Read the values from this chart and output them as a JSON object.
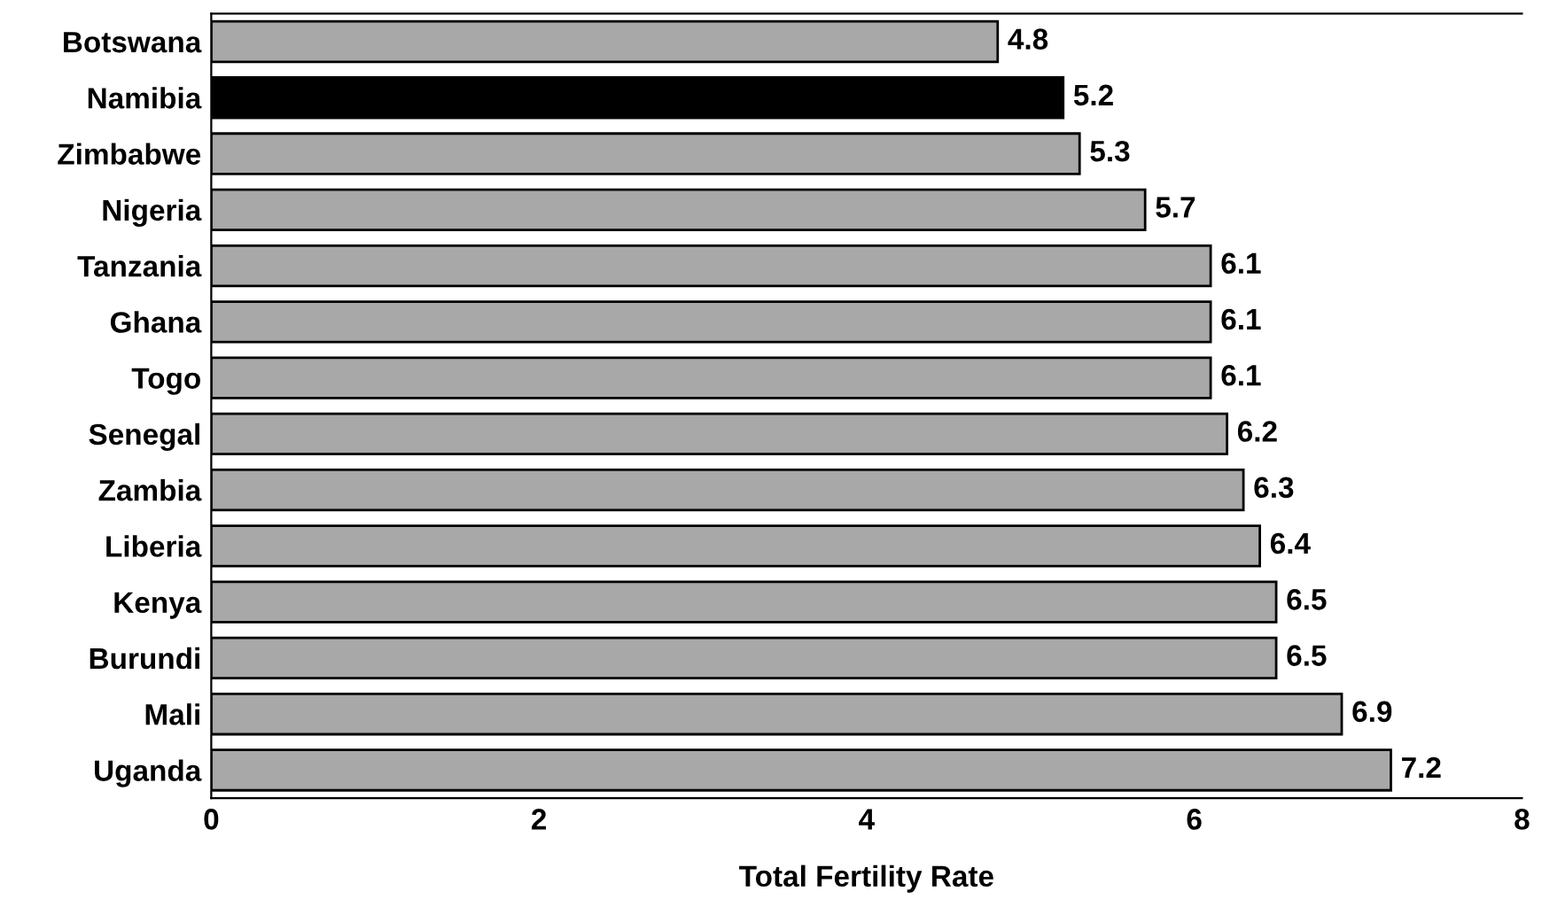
{
  "chart_data": {
    "type": "bar",
    "orientation": "horizontal",
    "xlabel": "Total Fertility Rate",
    "categories": [
      "Botswana",
      "Namibia",
      "Zimbabwe",
      "Nigeria",
      "Tanzania",
      "Ghana",
      "Togo",
      "Senegal",
      "Zambia",
      "Liberia",
      "Kenya",
      "Burundi",
      "Mali",
      "Uganda"
    ],
    "values": [
      4.8,
      5.2,
      5.3,
      5.7,
      6.1,
      6.1,
      6.1,
      6.2,
      6.3,
      6.4,
      6.5,
      6.5,
      6.9,
      7.2
    ],
    "colors": [
      "#a8a8a8",
      "#000000",
      "#a8a8a8",
      "#a8a8a8",
      "#a8a8a8",
      "#a8a8a8",
      "#a8a8a8",
      "#a8a8a8",
      "#a8a8a8",
      "#a8a8a8",
      "#a8a8a8",
      "#a8a8a8",
      "#a8a8a8",
      "#a8a8a8"
    ],
    "xlim": [
      0,
      8
    ],
    "xticks": [
      0,
      2,
      4,
      6,
      8
    ],
    "data_labels": true,
    "grid": false,
    "legend": false
  }
}
